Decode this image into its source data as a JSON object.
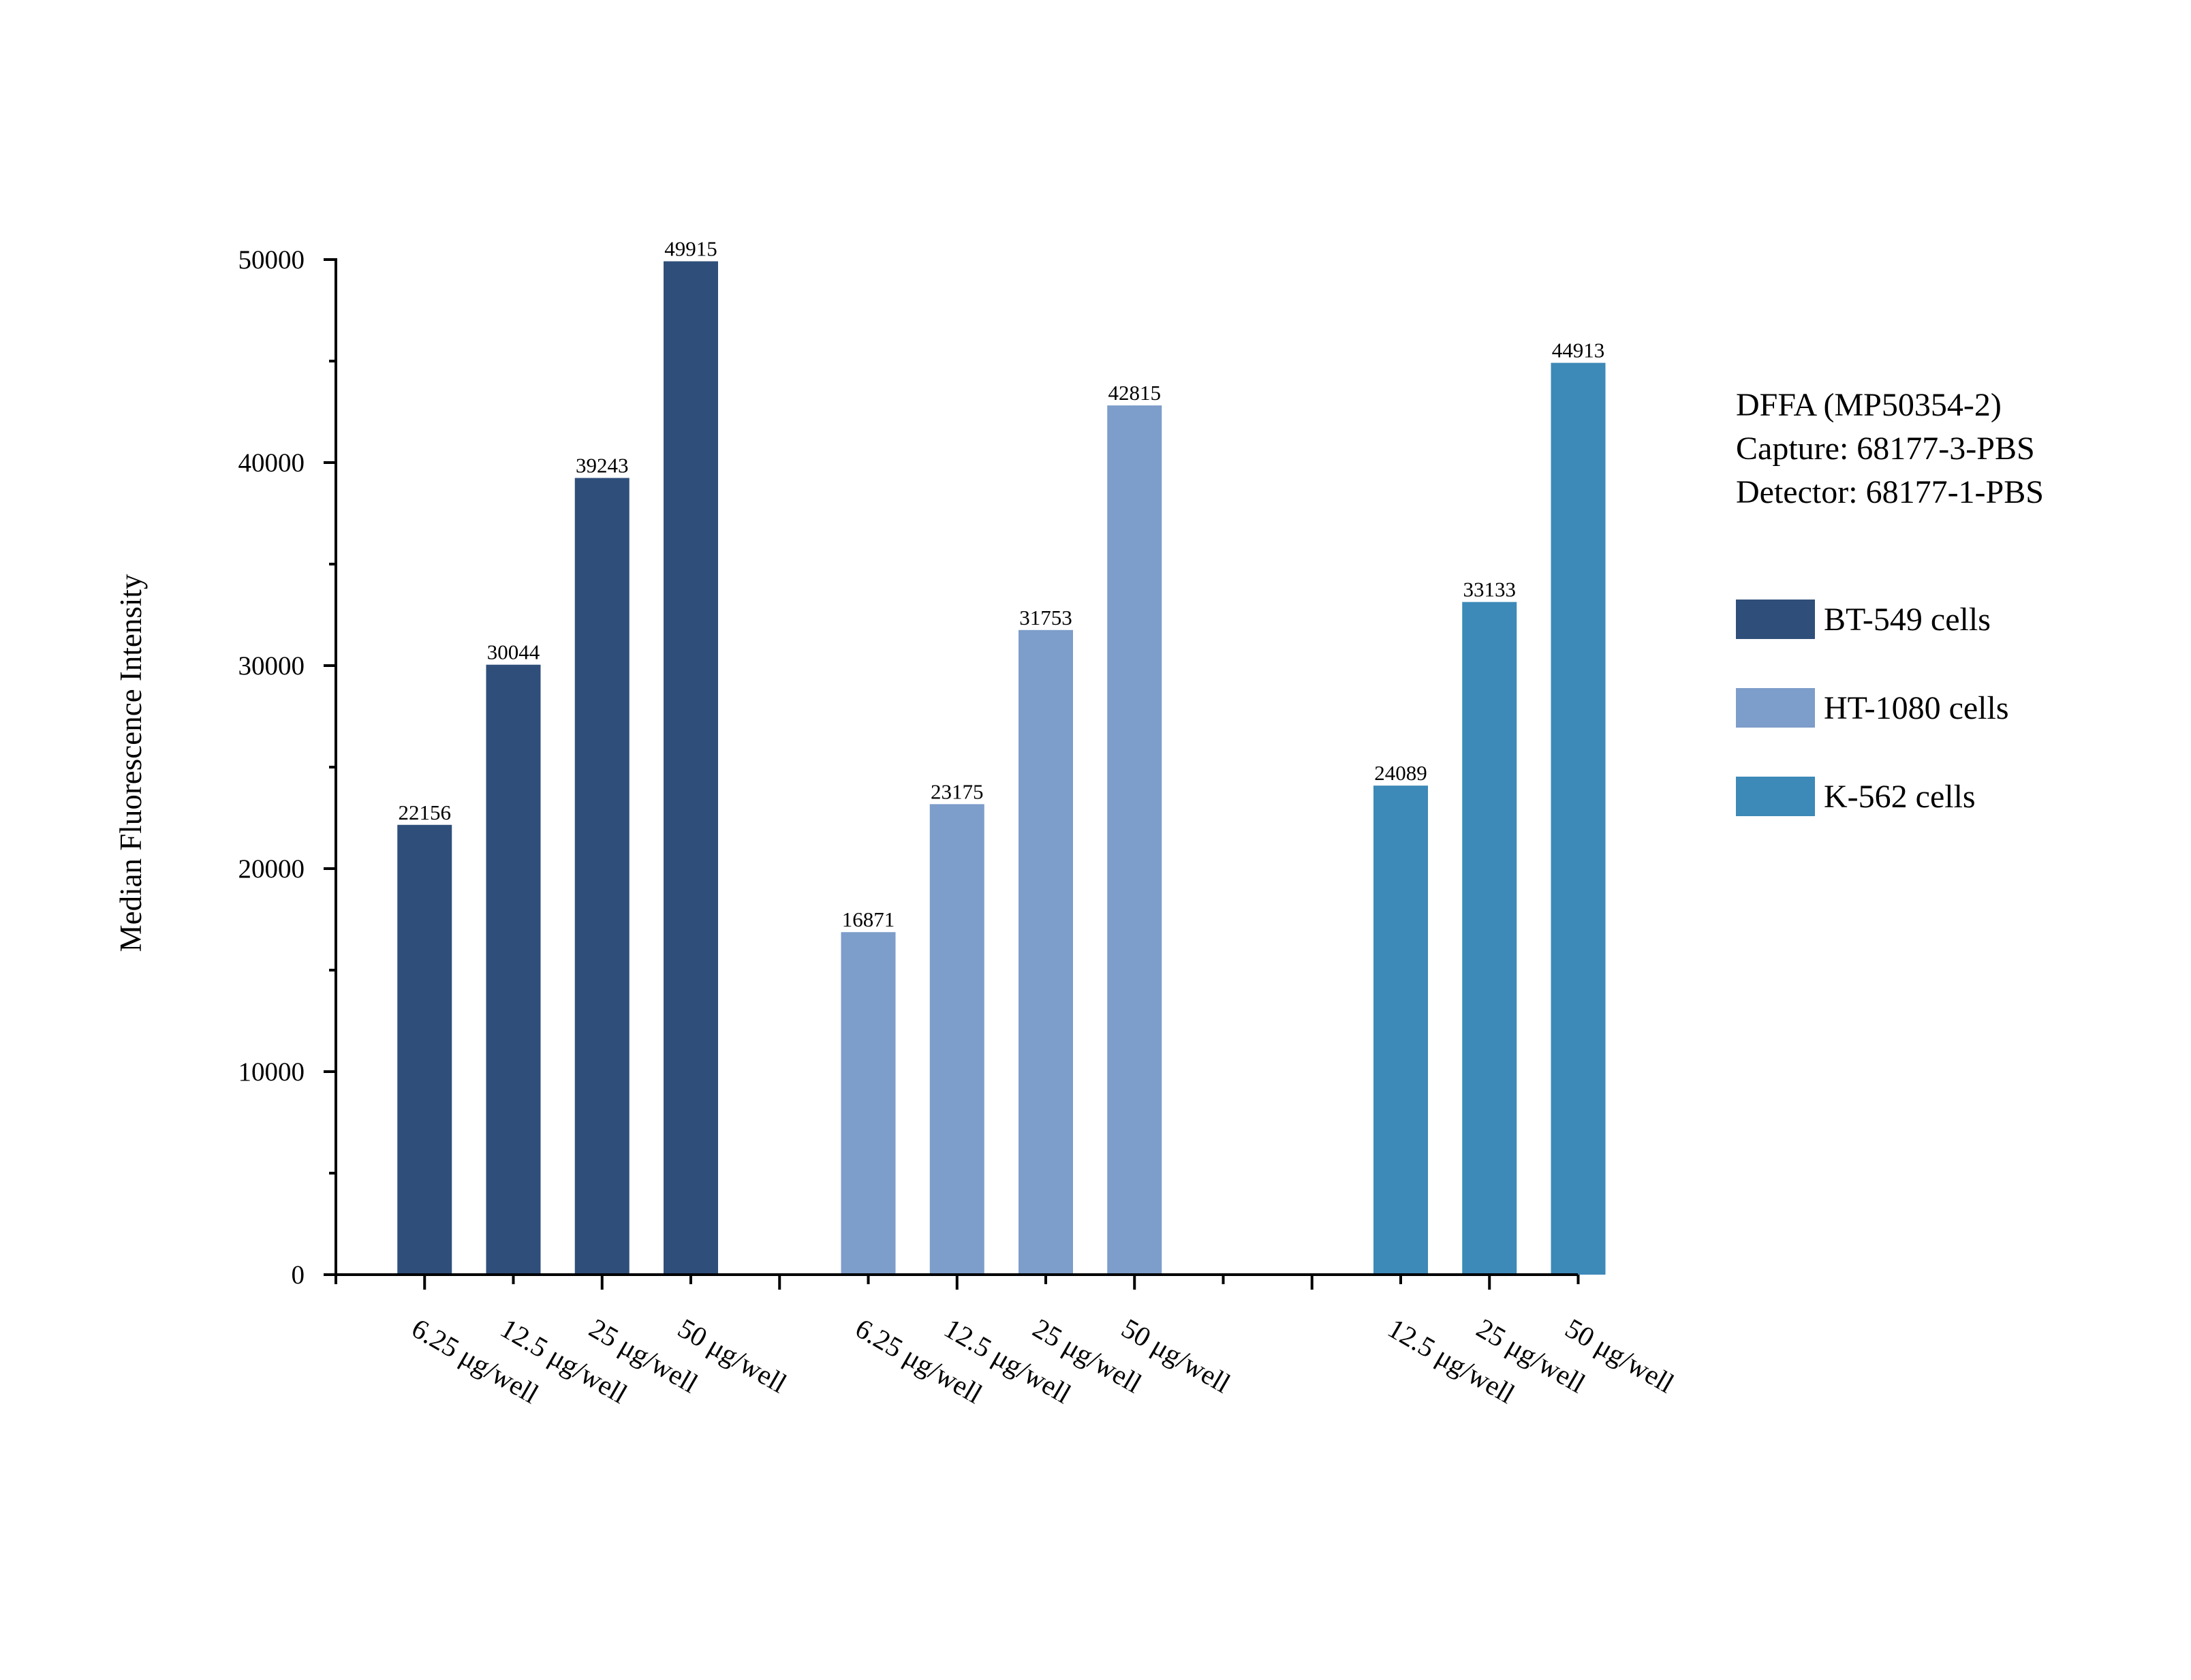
{
  "chart_data": {
    "type": "bar",
    "ylabel": "Median Fluorescence Intensity",
    "xlabel": "",
    "ylim": [
      0,
      50000
    ],
    "yticks": [
      0,
      10000,
      20000,
      30000,
      40000,
      50000
    ],
    "grid": false,
    "legend_position": "right",
    "info_lines": [
      "DFFA (MP50354-2)",
      "Capture: 68177-3-PBS",
      "Detector: 68177-1-PBS"
    ],
    "series": [
      {
        "name": "BT-549 cells",
        "color": "#2f4f7a",
        "categories": [
          "6.25 μg/well",
          "12.5 μg/well",
          "25 μg/well",
          "50 μg/well"
        ],
        "values": [
          22156,
          30044,
          39243,
          49915
        ]
      },
      {
        "name": "HT-1080 cells",
        "color": "#7d9dca",
        "categories": [
          "6.25 μg/well",
          "12.5 μg/well",
          "25 μg/well",
          "50 μg/well"
        ],
        "values": [
          16871,
          23175,
          31753,
          42815
        ]
      },
      {
        "name": "K-562 cells",
        "color": "#3d89b8",
        "categories": [
          "12.5 μg/well",
          "25 μg/well",
          "50 μg/well"
        ],
        "values": [
          24089,
          33133,
          44913
        ]
      }
    ]
  }
}
